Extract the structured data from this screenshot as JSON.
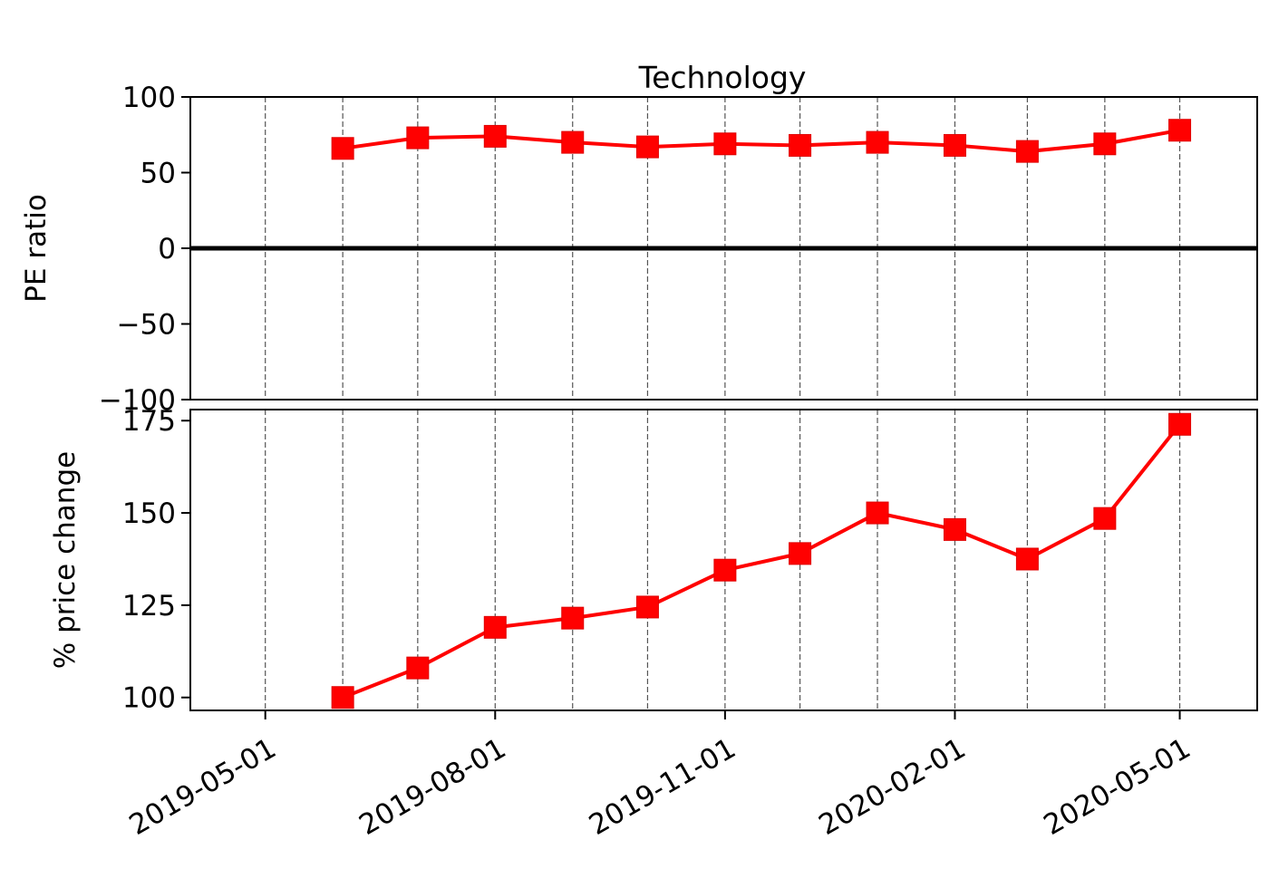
{
  "chart_data": [
    {
      "type": "line",
      "panel": "top",
      "title": "Technology",
      "xlabel": "",
      "ylabel": "PE ratio",
      "ylim": [
        -100,
        100
      ],
      "yticks": [
        100,
        50,
        0,
        -50,
        -100
      ],
      "ytick_labels": [
        "100",
        "50",
        "0",
        "−50",
        "−100"
      ],
      "grid": "vertical dashed gray lines at each month",
      "zero_line": true,
      "series": [
        {
          "color": "#ff0000",
          "marker": "square",
          "x": [
            "2019-06-01",
            "2019-07-01",
            "2019-08-01",
            "2019-09-01",
            "2019-10-01",
            "2019-11-01",
            "2019-12-01",
            "2020-01-01",
            "2020-02-01",
            "2020-03-01",
            "2020-04-01",
            "2020-05-01"
          ],
          "values": [
            66,
            73,
            74,
            70,
            67,
            69,
            68,
            70,
            68,
            64,
            69,
            78
          ]
        }
      ]
    },
    {
      "type": "line",
      "panel": "bottom",
      "title": "",
      "xlabel": "",
      "ylabel": "% price change",
      "ylim": [
        96.5,
        178
      ],
      "yticks": [
        100,
        125,
        150,
        175
      ],
      "ytick_labels": [
        "100",
        "125",
        "150",
        "175"
      ],
      "grid": "vertical dashed gray lines at each month",
      "series": [
        {
          "color": "#ff0000",
          "marker": "square",
          "x": [
            "2019-06-01",
            "2019-07-01",
            "2019-08-01",
            "2019-09-01",
            "2019-10-01",
            "2019-11-01",
            "2019-12-01",
            "2020-01-01",
            "2020-02-01",
            "2020-03-01",
            "2020-04-01",
            "2020-05-01"
          ],
          "values": [
            100,
            108,
            119,
            121.5,
            124.5,
            134.5,
            139,
            150,
            145.5,
            137.5,
            148.5,
            174
          ]
        }
      ]
    }
  ],
  "shared_x": {
    "range": [
      "2019-04-01",
      "2020-06-01"
    ],
    "gridlines": [
      "2019-05-01",
      "2019-06-01",
      "2019-07-01",
      "2019-08-01",
      "2019-09-01",
      "2019-10-01",
      "2019-11-01",
      "2019-12-01",
      "2020-01-01",
      "2020-02-01",
      "2020-03-01",
      "2020-04-01",
      "2020-05-01",
      "2020-06-01"
    ],
    "tick_labels": [
      "2019-05-01",
      "2019-08-01",
      "2019-11-01",
      "2020-02-01",
      "2020-05-01"
    ]
  },
  "colors": {
    "series": "#ff0000",
    "grid": "#555555",
    "axis": "#000000"
  }
}
